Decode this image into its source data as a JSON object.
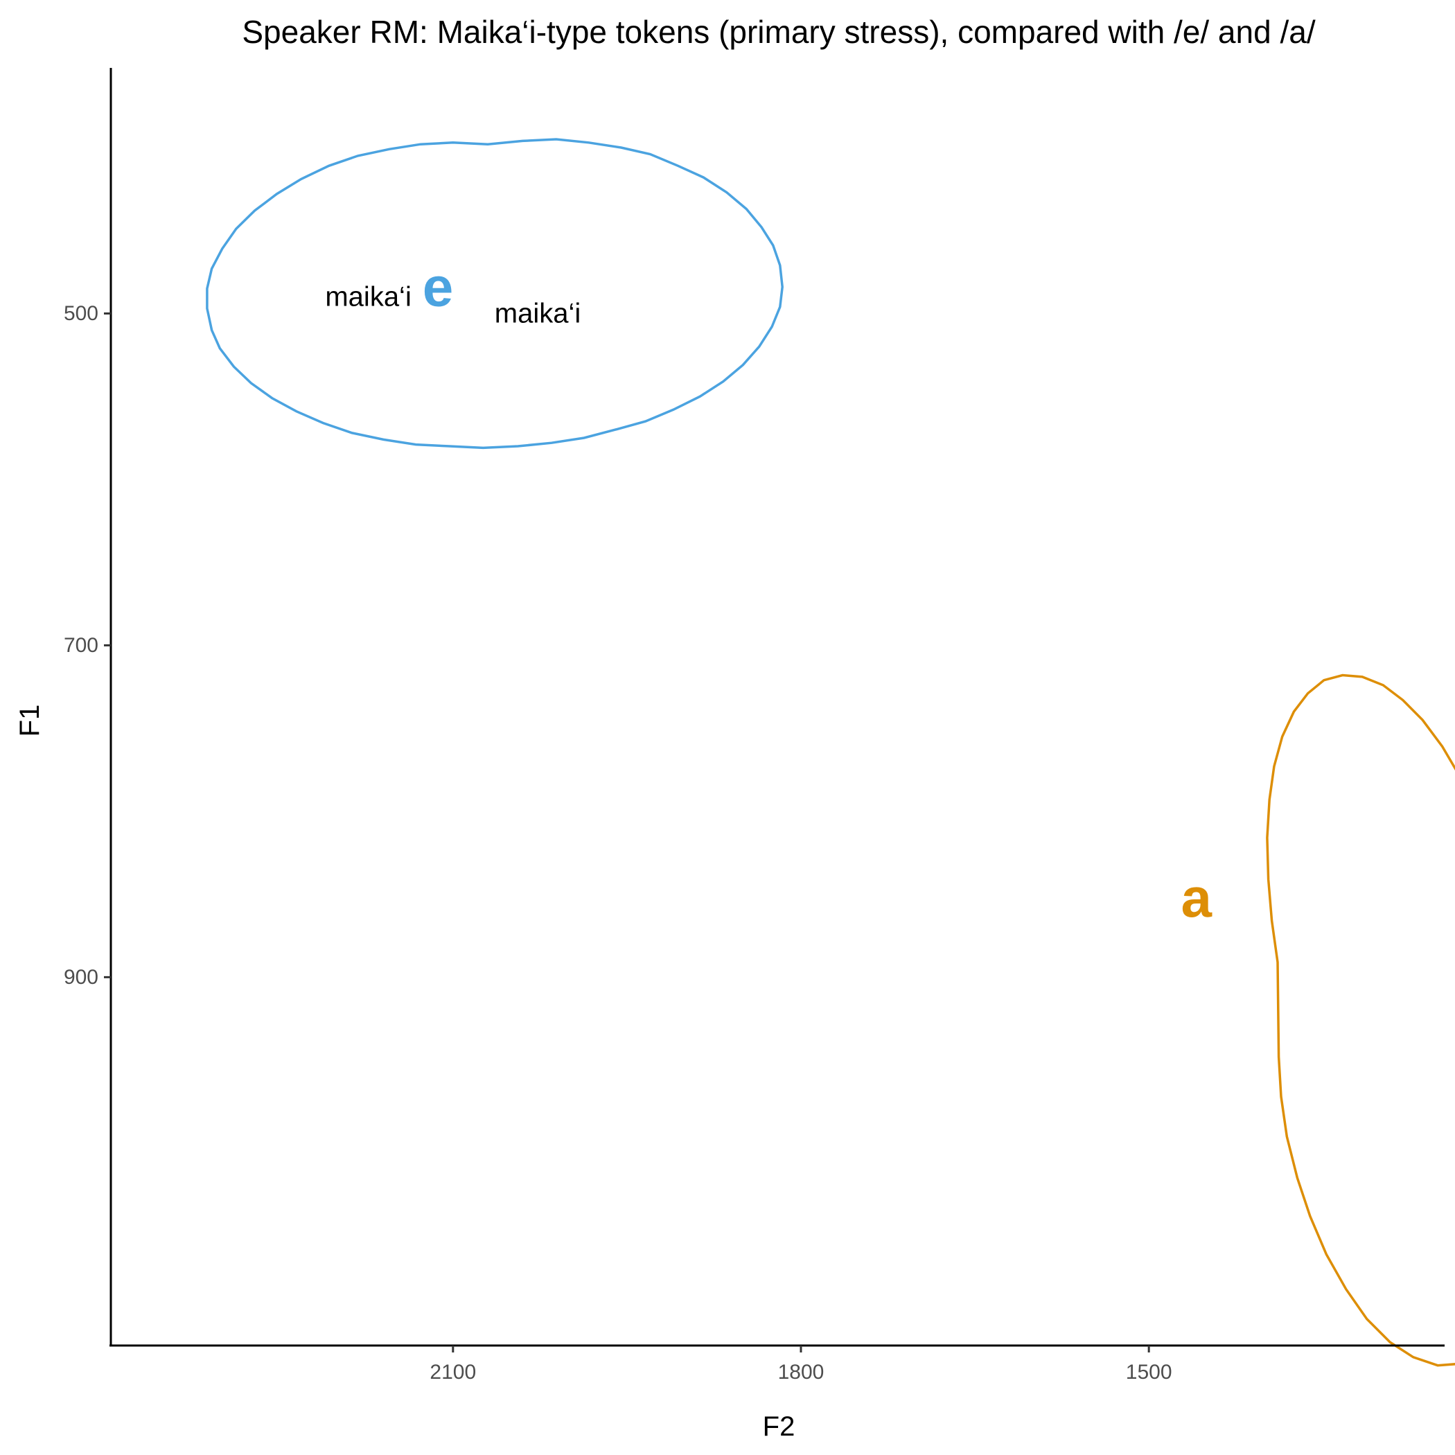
{
  "chart_data": {
    "type": "scatter",
    "title": "Speaker RM: Maika‘i-type tokens (primary stress), compared with /e/ and /a/",
    "xlabel": "F2",
    "ylabel": "F1",
    "x_axis_reversed": true,
    "y_axis_reversed": true,
    "xlim": [
      2395,
      1245
    ],
    "ylim": [
      352,
      1122
    ],
    "x_ticks": [
      2100,
      1800,
      1500
    ],
    "y_ticks": [
      500,
      700,
      900
    ],
    "grid": false,
    "colors": {
      "e": "#4ba3e0",
      "a": "#dd8e06"
    },
    "vowel_labels": [
      {
        "label": "e",
        "x": 2113,
        "y": 484,
        "color": "#4ba3e0"
      },
      {
        "label": "a",
        "x": 1459,
        "y": 852,
        "color": "#dd8e06"
      }
    ],
    "ellipses": [
      {
        "vowel": "e",
        "color": "#4ba3e0",
        "points": [
          [
            2070,
            398
          ],
          [
            2100,
            397
          ],
          [
            2128,
            398
          ],
          [
            2155,
            401
          ],
          [
            2182,
            405
          ],
          [
            2207,
            411
          ],
          [
            2231,
            419
          ],
          [
            2252,
            428
          ],
          [
            2271,
            438
          ],
          [
            2287,
            449
          ],
          [
            2299,
            461
          ],
          [
            2308,
            473
          ],
          [
            2312,
            485
          ],
          [
            2312,
            497
          ],
          [
            2308,
            510
          ],
          [
            2301,
            521
          ],
          [
            2289,
            532
          ],
          [
            2274,
            542
          ],
          [
            2256,
            551
          ],
          [
            2235,
            559
          ],
          [
            2212,
            566
          ],
          [
            2187,
            572
          ],
          [
            2160,
            576
          ],
          [
            2132,
            579
          ],
          [
            2103,
            580
          ],
          [
            2074,
            581
          ],
          [
            2044,
            580
          ],
          [
            2015,
            578
          ],
          [
            1987,
            575
          ],
          [
            1960,
            570
          ],
          [
            1934,
            565
          ],
          [
            1910,
            558
          ],
          [
            1887,
            550
          ],
          [
            1867,
            541
          ],
          [
            1850,
            531
          ],
          [
            1836,
            520
          ],
          [
            1825,
            508
          ],
          [
            1818,
            496
          ],
          [
            1816,
            484
          ],
          [
            1818,
            471
          ],
          [
            1824,
            459
          ],
          [
            1834,
            448
          ],
          [
            1847,
            437
          ],
          [
            1864,
            427
          ],
          [
            1884,
            418
          ],
          [
            1906,
            411
          ],
          [
            1930,
            404
          ],
          [
            1955,
            400
          ],
          [
            1983,
            397
          ],
          [
            2011,
            395
          ],
          [
            2040,
            396
          ],
          [
            2070,
            398
          ]
        ]
      },
      {
        "vowel": "a",
        "color": "#dd8e06",
        "points": [
          [
            1388,
            948
          ],
          [
            1386,
            972
          ],
          [
            1381,
            996
          ],
          [
            1372,
            1021
          ],
          [
            1361,
            1044
          ],
          [
            1347,
            1067
          ],
          [
            1330,
            1088
          ],
          [
            1312,
            1106
          ],
          [
            1292,
            1120
          ],
          [
            1272,
            1129
          ],
          [
            1251,
            1134
          ],
          [
            1232,
            1133
          ],
          [
            1213,
            1127
          ],
          [
            1197,
            1116
          ],
          [
            1183,
            1101
          ],
          [
            1171,
            1083
          ],
          [
            1162,
            1061
          ],
          [
            1156,
            1037
          ],
          [
            1152,
            1011
          ],
          [
            1152,
            985
          ],
          [
            1154,
            957
          ],
          [
            1159,
            929
          ],
          [
            1167,
            902
          ],
          [
            1177,
            875
          ],
          [
            1188,
            849
          ],
          [
            1202,
            824
          ],
          [
            1216,
            801
          ],
          [
            1231,
            780
          ],
          [
            1247,
            761
          ],
          [
            1264,
            745
          ],
          [
            1281,
            733
          ],
          [
            1298,
            724
          ],
          [
            1316,
            719
          ],
          [
            1333,
            718
          ],
          [
            1349,
            721
          ],
          [
            1363,
            729
          ],
          [
            1375,
            740
          ],
          [
            1385,
            755
          ],
          [
            1392,
            773
          ],
          [
            1396,
            793
          ],
          [
            1398,
            816
          ],
          [
            1397,
            841
          ],
          [
            1394,
            866
          ],
          [
            1389,
            891
          ],
          [
            1388,
            948
          ]
        ]
      }
    ],
    "tokens": [
      {
        "label": "maika‘i",
        "x": 2173,
        "y": 490
      },
      {
        "label": "maika‘i",
        "x": 2027,
        "y": 500
      }
    ]
  }
}
